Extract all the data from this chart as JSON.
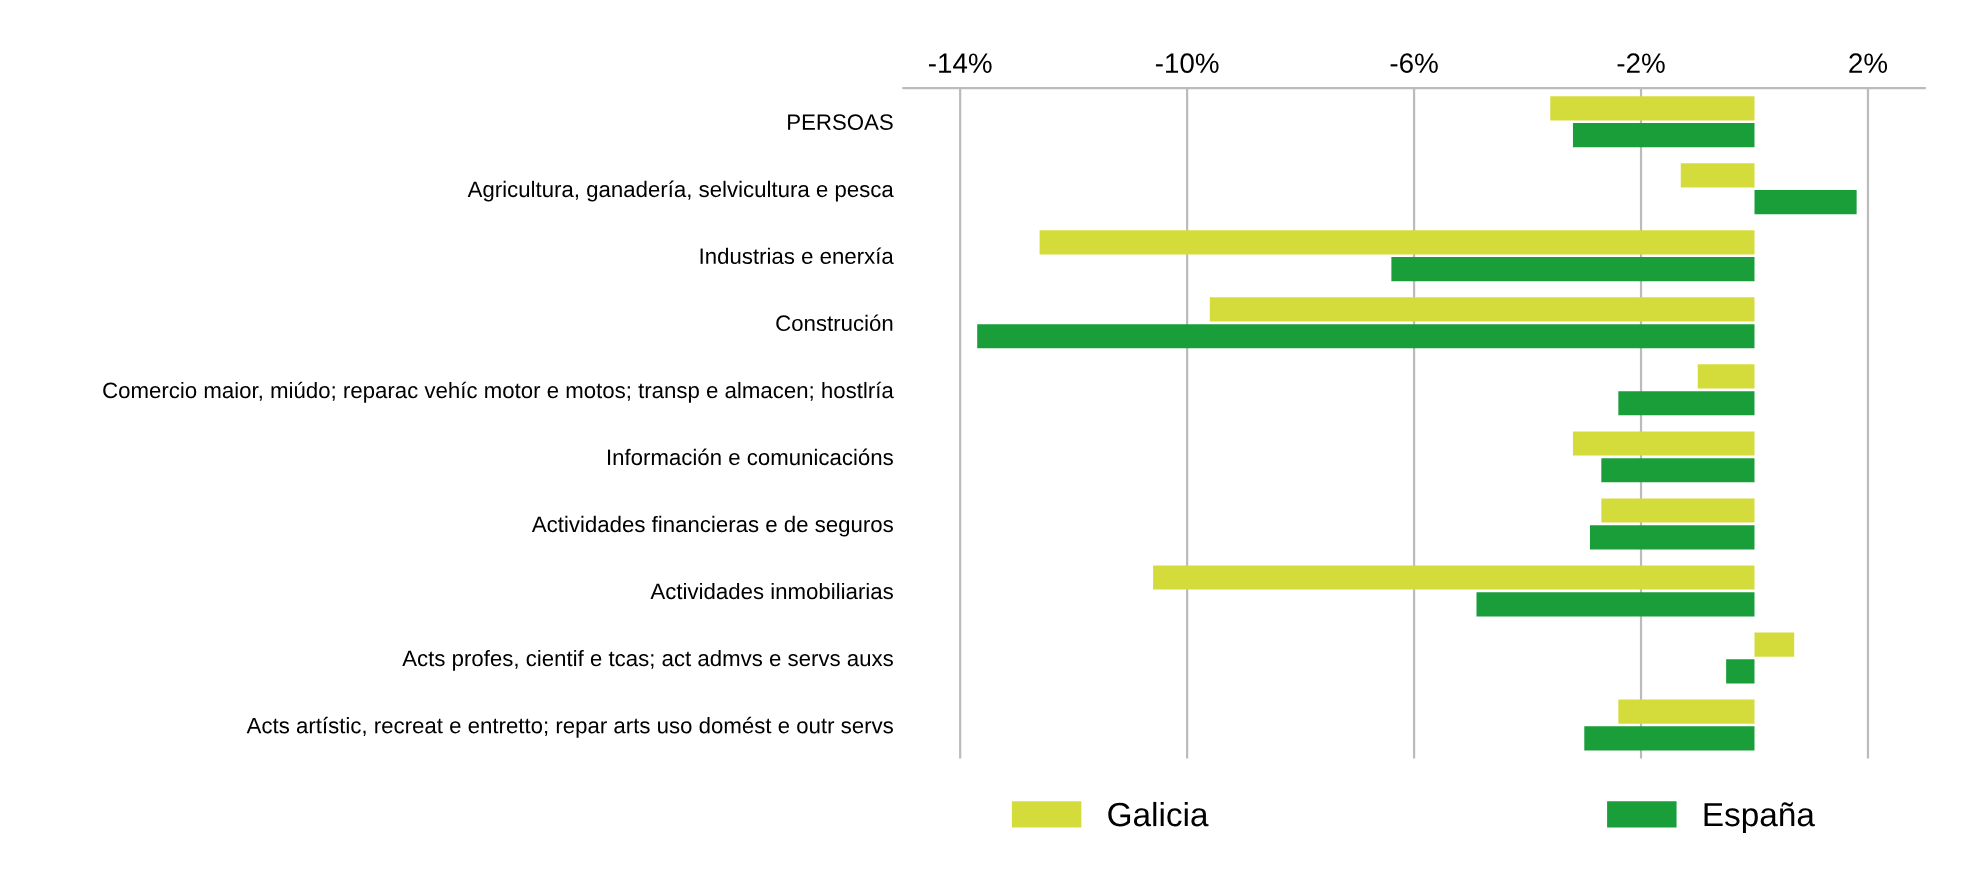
{
  "chart_data": {
    "type": "bar",
    "orientation": "horizontal",
    "categories": [
      "PERSOAS",
      "Agricultura, ganadería, selvicultura e pesca",
      "Industrias e enerxía",
      "Construción",
      "Comercio maior, miúdo; reparac vehíc motor e motos; transp e almacen; hostlría",
      "Información e comunicacións",
      "Actividades financieras e de seguros",
      "Actividades inmobiliarias",
      "Acts profes, cientif e tcas; act admvs e servs auxs",
      "Acts artístic, recreat e entretto; repar arts uso domést e outr servs"
    ],
    "series": [
      {
        "name": "Galicia",
        "color": "#d4dc3c",
        "values": [
          -3.6,
          -1.3,
          -12.6,
          -9.6,
          -1.0,
          -3.2,
          -2.7,
          -10.6,
          0.7,
          -2.4
        ]
      },
      {
        "name": "España",
        "color": "#1a9e3a",
        "values": [
          -3.2,
          1.8,
          -6.4,
          -13.7,
          -2.4,
          -2.7,
          -2.9,
          -4.9,
          -0.5,
          -3.0
        ]
      }
    ],
    "xlim": [
      -15,
      3
    ],
    "xticks": [
      {
        "value": -14,
        "label": "-14%"
      },
      {
        "value": -10,
        "label": "-10%"
      },
      {
        "value": -6,
        "label": "-6%"
      },
      {
        "value": -2,
        "label": "-2%"
      },
      {
        "value": 2,
        "label": "2%"
      }
    ],
    "grid": "x",
    "legend": "bottom"
  }
}
